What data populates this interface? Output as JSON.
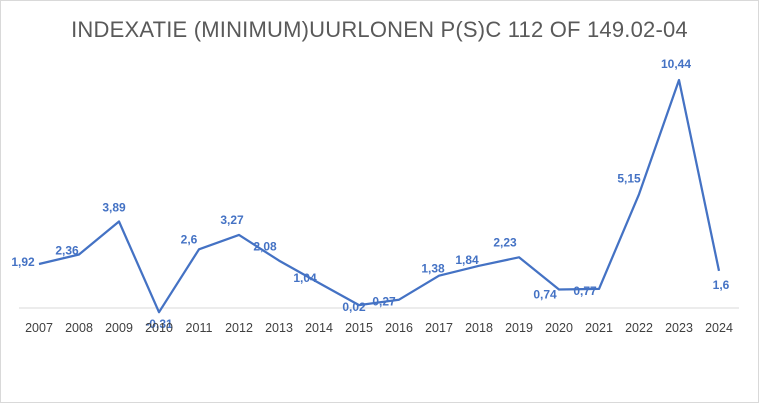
{
  "chart_data": {
    "type": "line",
    "title": "INDEXATIE (MINIMUM)UURLONEN P(S)C 112 OF 149.02-04",
    "xlabel": "",
    "ylabel": "",
    "categories": [
      "2007",
      "2008",
      "2009",
      "2010",
      "2011",
      "2012",
      "2013",
      "2014",
      "2015",
      "2016",
      "2017",
      "2018",
      "2019",
      "2020",
      "2021",
      "2022",
      "2023",
      "2024"
    ],
    "series": [
      {
        "values": [
          1.92,
          2.36,
          3.89,
          -0.31,
          2.6,
          3.27,
          2.08,
          1.04,
          0.02,
          0.27,
          1.38,
          1.84,
          2.23,
          0.74,
          0.77,
          5.15,
          10.44,
          1.6
        ],
        "labels": [
          "1,92",
          "2,36",
          "3,89",
          "-0,31",
          "2,6",
          "3,27",
          "2,08",
          "1,04",
          "0,02",
          "0,27",
          "1,38",
          "1,84",
          "2,23",
          "0,74",
          "0,77",
          "5,15",
          "10,44",
          "1,6"
        ]
      }
    ],
    "legend": "none",
    "grid": false,
    "colors": {
      "line": "#4472c4",
      "axis": "#d9d9d9",
      "title": "#595959",
      "tick": "#404040"
    }
  }
}
